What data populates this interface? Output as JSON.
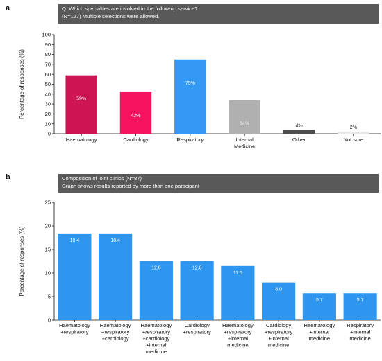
{
  "panels": {
    "a": {
      "letter": "a",
      "title_lines": [
        "Q. Which specialties are involved in the follow-up service?",
        "(N=127) Multiple selections were allowed."
      ]
    },
    "b": {
      "letter": "b",
      "title_lines": [
        "Composition of joint clinics (N=87)",
        "Graph shows results reported by more than one participant"
      ]
    }
  },
  "chart_data": [
    {
      "type": "bar",
      "title": "Q. Which specialties are involved in the follow-up service? (N=127) Multiple selections were allowed.",
      "ylabel": "Percentage of responses (%)",
      "ylim": [
        0,
        100
      ],
      "yticks": [
        0,
        10,
        20,
        30,
        40,
        50,
        60,
        70,
        80,
        90,
        100
      ],
      "categories": [
        "Haematology",
        "Cardiology",
        "Respiratory",
        "Internal\nMedicine",
        "Other",
        "Not sure"
      ],
      "values": [
        59,
        42,
        75,
        34,
        4,
        2
      ],
      "labels": [
        "59%",
        "42%",
        "75%",
        "34%",
        "4%",
        "2%"
      ],
      "colors": [
        "#cc1552",
        "#f5125e",
        "#3399f3",
        "#b0b0b0",
        "#4d4d4d",
        "#e8e8e8"
      ],
      "label_outside": [
        false,
        false,
        false,
        false,
        true,
        true
      ],
      "grid": false
    },
    {
      "type": "bar",
      "title": "Composition of joint clinics (N=87) Graph shows results reported by more than one participant",
      "ylabel": "Percentage of responses (%)",
      "ylim": [
        0,
        25
      ],
      "yticks": [
        0,
        5,
        10,
        15,
        20,
        25
      ],
      "categories": [
        "Haematology\n+respiratory",
        "Haematology\n+respiratory\n+cardiology",
        "Haematology\n+respiratory\n+cardiology\n+internal\nmedicine",
        "Cardiology\n+respiratory",
        "Haematology\n+respiratory\n+internal\nmedicine",
        "Cardiology\n+respiratory\n+internal\nmedicine",
        "Haematology\n+internal\nmedicine",
        "Respiratory\n+internal\nmedicine"
      ],
      "values": [
        18.4,
        18.4,
        12.6,
        12.6,
        11.5,
        8.0,
        5.7,
        5.7
      ],
      "labels": [
        "18.4",
        "18.4",
        "12.6",
        "12.6",
        "11.5",
        "8.0",
        "5.7",
        "5.7"
      ],
      "colors": [
        "#2f96f0"
      ],
      "grid": false
    }
  ]
}
